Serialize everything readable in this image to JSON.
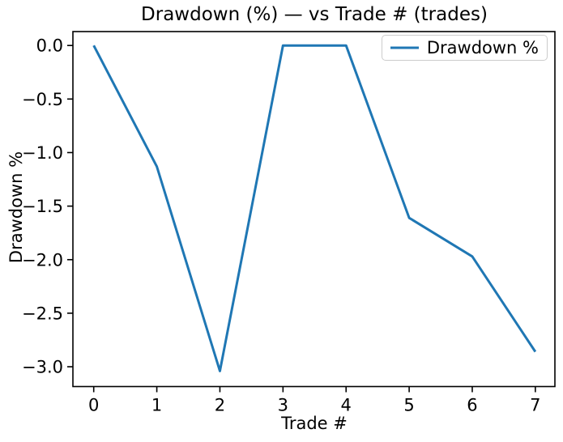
{
  "chart_data": {
    "type": "line",
    "title": "Drawdown (%) — vs Trade # (trades)",
    "xlabel": "Trade #",
    "ylabel": "Drawdown %",
    "x": [
      0,
      1,
      2,
      3,
      4,
      5,
      6,
      7
    ],
    "series": [
      {
        "name": "Drawdown %",
        "color": "#1f77b4",
        "values": [
          0.0,
          -1.13,
          -3.04,
          0.0,
          0.0,
          -1.61,
          -1.97,
          -2.86
        ]
      }
    ],
    "xlim": [
      -0.33,
      7.31
    ],
    "ylim": [
      -3.185,
      0.13
    ],
    "xticks": [
      0,
      1,
      2,
      3,
      4,
      5,
      6,
      7
    ],
    "xtick_labels": [
      "0",
      "1",
      "2",
      "3",
      "4",
      "5",
      "6",
      "7"
    ],
    "yticks": [
      0.0,
      -0.5,
      -1.0,
      -1.5,
      -2.0,
      -2.5,
      -3.0
    ],
    "ytick_labels": [
      "0.0",
      "−0.5",
      "−1.0",
      "−1.5",
      "−2.0",
      "−2.5",
      "−3.0"
    ],
    "grid": false,
    "legend_position": "upper right",
    "axis_color": "#000000"
  }
}
